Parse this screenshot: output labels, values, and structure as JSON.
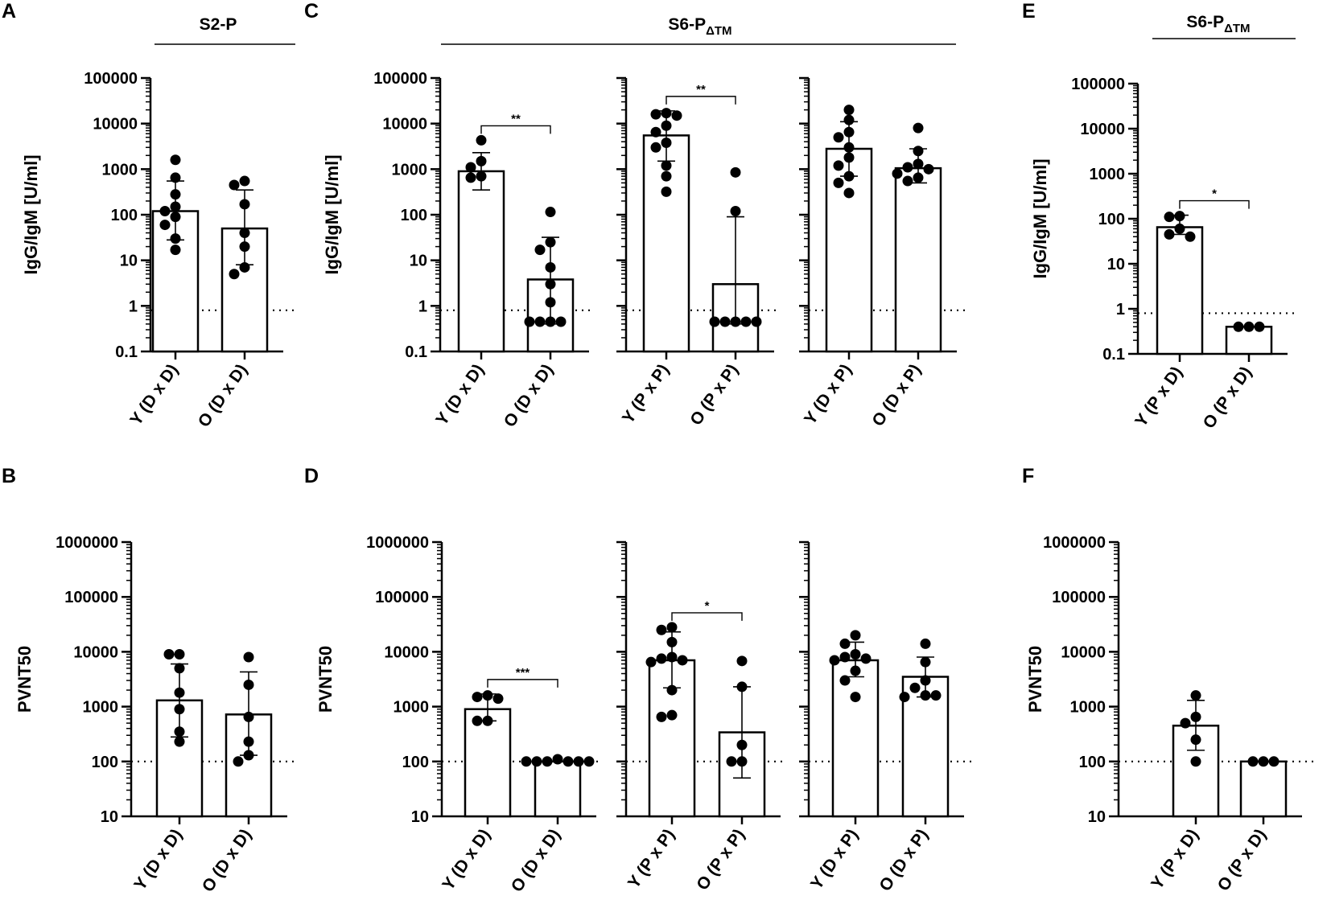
{
  "figure": {
    "panel_labels": [
      "A",
      "B",
      "C",
      "D",
      "E",
      "F"
    ],
    "titles": {
      "A": "S2-P",
      "C": {
        "main": "S6-P",
        "sub": "ΔTM"
      },
      "E": {
        "main": "S6-P",
        "sub": "ΔTM"
      }
    }
  },
  "chart_data": [
    {
      "id": "A",
      "type": "bar",
      "scale": "log",
      "ylim": [
        0.1,
        100000
      ],
      "ylabel": "IgG/IgM [U/ml]",
      "yticks": [
        "0.1",
        "1",
        "10",
        "100",
        "1000",
        "10000",
        "100000"
      ],
      "threshold": 0.8,
      "groups": [
        {
          "categories": [
            "Y (D x D)",
            "O (D x D)"
          ],
          "bars": [
            {
              "mean": 120,
              "err_low": 28,
              "err_high": 550,
              "points": [
                1600,
                650,
                280,
                150,
                120,
                90,
                60,
                30,
                17
              ]
            },
            {
              "mean": 50,
              "err_low": 8,
              "err_high": 350,
              "points": [
                550,
                450,
                170,
                40,
                20,
                7,
                5
              ]
            }
          ],
          "sig": null
        }
      ]
    },
    {
      "id": "B",
      "type": "bar",
      "scale": "log",
      "ylim": [
        10,
        1000000
      ],
      "ylabel": "PVNT50",
      "yticks": [
        "10",
        "100",
        "1000",
        "10000",
        "100000",
        "1000000"
      ],
      "threshold": 100,
      "groups": [
        {
          "categories": [
            "Y (D x D)",
            "O (D x D)"
          ],
          "bars": [
            {
              "mean": 1300,
              "err_low": 280,
              "err_high": 6000,
              "points": [
                9000,
                9000,
                5000,
                1800,
                900,
                350,
                230
              ]
            },
            {
              "mean": 720,
              "err_low": 130,
              "err_high": 4300,
              "points": [
                8000,
                2500,
                650,
                230,
                130,
                100
              ]
            }
          ],
          "sig": null
        }
      ]
    },
    {
      "id": "C",
      "type": "bar",
      "scale": "log",
      "ylim": [
        0.1,
        100000
      ],
      "ylabel": "IgG/IgM [U/ml]",
      "yticks": [
        "0.1",
        "1",
        "10",
        "100",
        "1000",
        "10000",
        "100000"
      ],
      "threshold": 0.8,
      "groups": [
        {
          "categories": [
            "Y (D x D)",
            "O (D x D)"
          ],
          "bars": [
            {
              "mean": 900,
              "err_low": 350,
              "err_high": 2300,
              "points": [
                4300,
                1500,
                1100,
                700,
                650
              ]
            },
            {
              "mean": 3.8,
              "err_low": 0.4,
              "err_high": 32,
              "points": [
                115,
                25,
                17,
                7,
                3,
                1.2,
                0.45,
                0.45,
                0.45,
                0.45
              ]
            }
          ],
          "sig": "**"
        },
        {
          "categories": [
            "Y (P x P)",
            "O (P x P)"
          ],
          "bars": [
            {
              "mean": 5500,
              "err_low": 1500,
              "err_high": 19000,
              "points": [
                17000,
                16000,
                15000,
                9000,
                6500,
                3800,
                3000,
                1200,
                700,
                320
              ]
            },
            {
              "mean": 3,
              "err_low": 0.4,
              "err_high": 90,
              "points": [
                850,
                120,
                0.45,
                0.45,
                0.45,
                0.45,
                0.45
              ]
            }
          ],
          "sig": "**"
        },
        {
          "categories": [
            "Y (D x P)",
            "O (D x P)"
          ],
          "bars": [
            {
              "mean": 2800,
              "err_low": 700,
              "err_high": 11000,
              "points": [
                20000,
                12000,
                6500,
                5000,
                3000,
                1800,
                1200,
                700,
                500,
                300
              ]
            },
            {
              "mean": 1050,
              "err_low": 500,
              "err_high": 2800,
              "points": [
                8000,
                2500,
                1300,
                1100,
                1000,
                800,
                650,
                550
              ]
            }
          ],
          "sig": null
        }
      ]
    },
    {
      "id": "D",
      "type": "bar",
      "scale": "log",
      "ylim": [
        10,
        1000000
      ],
      "ylabel": "PVNT50",
      "yticks": [
        "10",
        "100",
        "1000",
        "10000",
        "100000",
        "1000000"
      ],
      "threshold": 100,
      "groups": [
        {
          "categories": [
            "Y (D x D)",
            "O (D x D)"
          ],
          "bars": [
            {
              "mean": 900,
              "err_low": 550,
              "err_high": 1700,
              "points": [
                1600,
                1500,
                1400,
                550,
                550
              ]
            },
            {
              "mean": 100,
              "err_low": 100,
              "err_high": 100,
              "points": [
                110,
                100,
                100,
                100,
                100,
                100,
                100
              ]
            }
          ],
          "sig": "***"
        },
        {
          "categories": [
            "Y (P x P)",
            "O (P x P)"
          ],
          "bars": [
            {
              "mean": 7000,
              "err_low": 2200,
              "err_high": 23000,
              "points": [
                28000,
                25000,
                15000,
                8000,
                7500,
                7000,
                6500,
                2000,
                700,
                650
              ]
            },
            {
              "mean": 340,
              "err_low": 50,
              "err_high": 2300,
              "points": [
                6800,
                2300,
                200,
                100,
                100
              ]
            }
          ],
          "sig": "*"
        },
        {
          "categories": [
            "Y (D x P)",
            "O (D x P)"
          ],
          "bars": [
            {
              "mean": 7000,
              "err_low": 3500,
              "err_high": 15000,
              "points": [
                20000,
                14000,
                9000,
                8000,
                7500,
                7000,
                4500,
                3000,
                1500
              ]
            },
            {
              "mean": 3500,
              "err_low": 1500,
              "err_high": 8000,
              "points": [
                14000,
                6500,
                3000,
                2200,
                1600,
                1600,
                1500
              ]
            }
          ],
          "sig": null
        }
      ]
    },
    {
      "id": "E",
      "type": "bar",
      "scale": "log",
      "ylim": [
        0.1,
        100000
      ],
      "ylabel": "IgG/IgM [U/ml]",
      "yticks": [
        "0.1",
        "1",
        "10",
        "100",
        "1000",
        "10000",
        "100000"
      ],
      "threshold": 0.8,
      "groups": [
        {
          "categories": [
            "Y (P x D)",
            "O (P x D)"
          ],
          "bars": [
            {
              "mean": 65,
              "err_low": 45,
              "err_high": 120,
              "points": [
                115,
                110,
                60,
                45,
                40
              ]
            },
            {
              "mean": 0.4,
              "err_low": 0.4,
              "err_high": 0.4,
              "points": [
                0.4,
                0.4,
                0.4
              ]
            }
          ],
          "sig": "*"
        }
      ]
    },
    {
      "id": "F",
      "type": "bar",
      "scale": "log",
      "ylim": [
        10,
        1000000
      ],
      "ylabel": "PVNT50",
      "yticks": [
        "10",
        "100",
        "1000",
        "10000",
        "100000",
        "1000000"
      ],
      "threshold": 100,
      "groups": [
        {
          "categories": [
            "Y (P x D)",
            "O (P x D)"
          ],
          "bars": [
            {
              "mean": 450,
              "err_low": 160,
              "err_high": 1300,
              "points": [
                1600,
                650,
                500,
                250,
                100
              ]
            },
            {
              "mean": 100,
              "err_low": 100,
              "err_high": 100,
              "points": [
                100,
                100,
                100
              ]
            }
          ],
          "sig": null
        }
      ]
    }
  ]
}
